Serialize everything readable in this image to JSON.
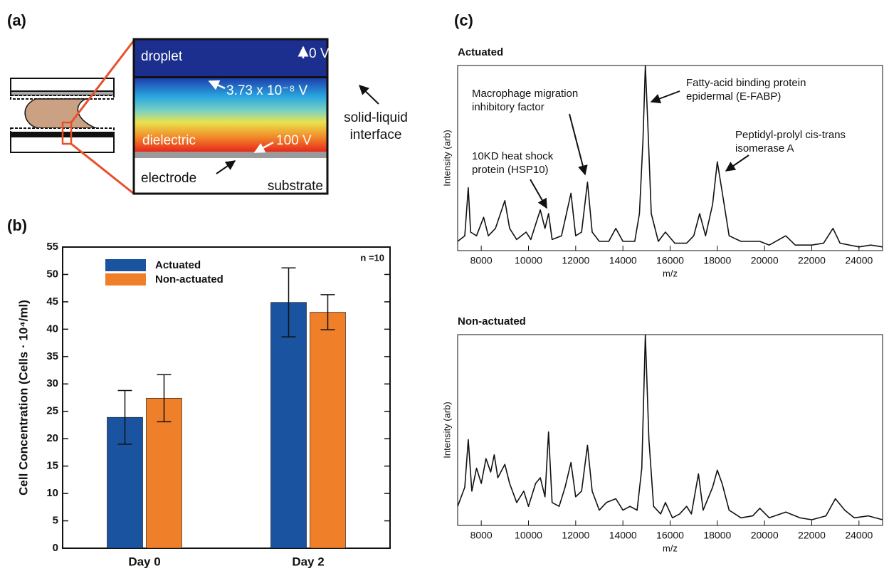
{
  "panels": [
    "(a)",
    "(b)",
    "(c)"
  ],
  "diagram": {
    "droplet": "droplet",
    "top_voltage": "0 V",
    "interface_voltage": "3.73 x 10⁻⁸ V",
    "interface": [
      "solid-liquid",
      "interface"
    ],
    "dielectric": "dielectric",
    "bottom_voltage": "100 V",
    "electrode": "electrode",
    "substrate": "substrate"
  },
  "chart_data": [
    {
      "type": "bar",
      "ylabel": "Cell Concentration (Cells · 10⁴/ml)",
      "categories": [
        "Day 0",
        "Day 2"
      ],
      "series": [
        {
          "name": "Actuated",
          "color": "#1a53a0",
          "values": [
            23.9,
            44.9
          ],
          "errors": [
            4.9,
            6.3
          ]
        },
        {
          "name": "Non-actuated",
          "color": "#f07f2a",
          "values": [
            27.4,
            43.1
          ],
          "errors": [
            4.3,
            3.2
          ]
        }
      ],
      "ylim": [
        0,
        55
      ],
      "yticks": [
        0,
        5,
        10,
        15,
        20,
        25,
        30,
        35,
        40,
        45,
        50,
        55
      ],
      "legend": "upper left",
      "annotation": "n =10"
    },
    {
      "type": "line",
      "title": "Actuated",
      "xlabel": "m/z",
      "ylabel": "Intensity (arb)",
      "color": "#111",
      "xlim": [
        7000,
        25000
      ],
      "xticks": [
        8000,
        10000,
        12000,
        14000,
        16000,
        18000,
        20000,
        22000,
        24000
      ],
      "ylim": [
        0,
        100
      ],
      "x": [
        7000,
        7300,
        7450,
        7550,
        7800,
        8100,
        8300,
        8600,
        9000,
        9200,
        9500,
        9900,
        10100,
        10500,
        10700,
        10850,
        11000,
        11400,
        11800,
        12000,
        12250,
        12500,
        12700,
        13000,
        13400,
        13700,
        14000,
        14500,
        14700,
        14850,
        14950,
        15050,
        15200,
        15500,
        15800,
        16200,
        16700,
        17000,
        17250,
        17500,
        17800,
        18000,
        18200,
        18500,
        19000,
        19800,
        20200,
        20900,
        21300,
        22000,
        22500,
        22900,
        23200,
        24000,
        24500,
        25000
      ],
      "values": [
        5,
        8,
        34,
        10,
        8,
        18,
        8,
        12,
        27,
        12,
        6,
        10,
        6,
        22,
        12,
        20,
        6,
        8,
        31,
        8,
        10,
        37,
        10,
        5,
        5,
        12,
        5,
        5,
        20,
        60,
        100,
        70,
        20,
        5,
        10,
        4,
        4,
        8,
        20,
        8,
        25,
        48,
        32,
        8,
        5,
        5,
        3,
        8,
        3,
        3,
        4,
        12,
        4,
        2,
        3,
        2
      ],
      "annotations": [
        [
          "Fatty-acid binding protein",
          "epidermal (E-FABP)"
        ],
        [
          "Macrophage migration",
          "inhibitory factor"
        ],
        [
          "10KD heat shock",
          "protein (HSP10)"
        ],
        [
          "Peptidyl-prolyl cis-trans",
          "isomerase A"
        ]
      ]
    },
    {
      "type": "line",
      "title": "Non-actuated",
      "xlabel": "m/z",
      "ylabel": "Intensity (arb)",
      "color": "#111",
      "xlim": [
        7000,
        25000
      ],
      "xticks": [
        8000,
        10000,
        12000,
        14000,
        16000,
        18000,
        20000,
        22000,
        24000
      ],
      "ylim": [
        0,
        100
      ],
      "x": [
        7000,
        7300,
        7450,
        7600,
        7800,
        8000,
        8200,
        8400,
        8550,
        8700,
        9000,
        9200,
        9500,
        9800,
        10000,
        10300,
        10500,
        10700,
        10850,
        11000,
        11300,
        11550,
        11800,
        12000,
        12250,
        12500,
        12700,
        13000,
        13300,
        13700,
        14000,
        14300,
        14600,
        14800,
        14950,
        15100,
        15300,
        15600,
        15800,
        16100,
        16400,
        16700,
        16900,
        17200,
        17400,
        17800,
        18000,
        18200,
        18500,
        19000,
        19500,
        19800,
        20200,
        20900,
        21500,
        22000,
        22600,
        23000,
        23400,
        23800,
        24400,
        25000
      ],
      "values": [
        10,
        20,
        45,
        18,
        30,
        22,
        35,
        28,
        37,
        25,
        32,
        22,
        12,
        18,
        10,
        22,
        25,
        15,
        49,
        12,
        10,
        20,
        33,
        15,
        18,
        42,
        18,
        8,
        12,
        14,
        8,
        10,
        8,
        30,
        100,
        45,
        10,
        6,
        12,
        4,
        6,
        10,
        6,
        27,
        8,
        20,
        29,
        22,
        8,
        4,
        5,
        9,
        4,
        7,
        4,
        3,
        5,
        14,
        8,
        4,
        5,
        3
      ]
    }
  ]
}
